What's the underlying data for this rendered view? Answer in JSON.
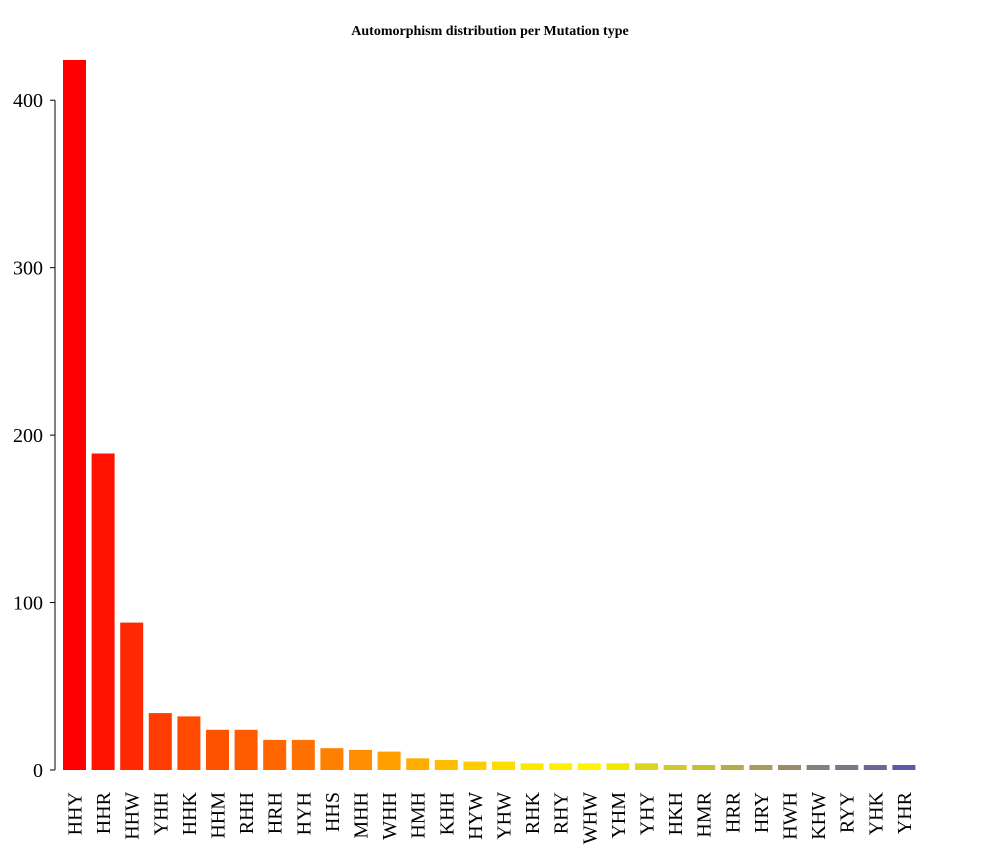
{
  "chart_data": {
    "type": "bar",
    "title": "Automorphism distribution per Mutation type",
    "xlabel": "",
    "ylabel": "",
    "ylim": [
      0,
      425
    ],
    "yticks": [
      0,
      100,
      200,
      300,
      400
    ],
    "grid": false,
    "categories": [
      "HHY",
      "HHR",
      "HHW",
      "YHH",
      "HHK",
      "HHM",
      "RHH",
      "HRH",
      "HYH",
      "HHS",
      "MHH",
      "WHH",
      "HMH",
      "KHH",
      "HYW",
      "YHW",
      "RHK",
      "RHY",
      "WHW",
      "YHM",
      "YHY",
      "HKH",
      "HMR",
      "HRR",
      "HRY",
      "HWH",
      "KHW",
      "RYY",
      "YHK",
      "YHR"
    ],
    "values": [
      424,
      189,
      88,
      34,
      32,
      24,
      24,
      18,
      18,
      13,
      12,
      11,
      7,
      6,
      5,
      5,
      4,
      4,
      4,
      4,
      4,
      3,
      3,
      3,
      3,
      3,
      3,
      3,
      3,
      3
    ],
    "colors": [
      "#ff0000",
      "#ff1200",
      "#ff2800",
      "#ff3c00",
      "#ff4a00",
      "#ff5200",
      "#ff5a00",
      "#ff6600",
      "#ff7000",
      "#ff8000",
      "#ff8e00",
      "#ffa000",
      "#ffae00",
      "#ffbc00",
      "#ffcc00",
      "#ffdc00",
      "#ffe800",
      "#fff000",
      "#fff400",
      "#f2e800",
      "#dcd41e",
      "#d4c82c",
      "#c8bc38",
      "#b8ac48",
      "#a89c58",
      "#988c68",
      "#888078",
      "#787888",
      "#686898",
      "#5a5aa8"
    ]
  }
}
